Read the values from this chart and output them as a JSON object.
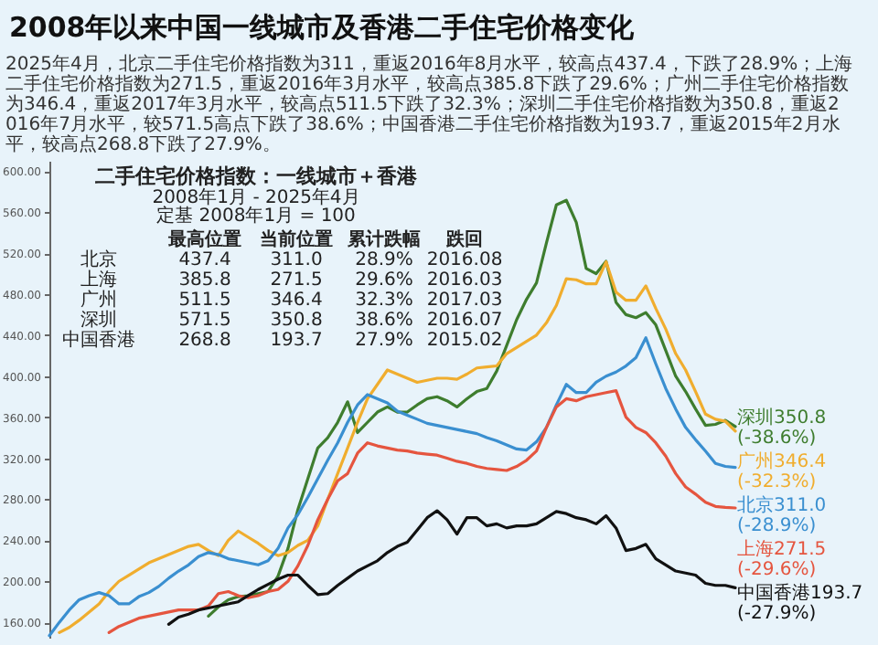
{
  "chart_data": {
    "type": "line",
    "title": "2008年以来中国一线城市及香港二手住宅价格变化",
    "annotations": [
      "2025年4月，北京二手住宅价格指数为311，重返2016年8月水平，较高点437.4，下跌了28.9%；上海二手住宅价格指数为271.5，重返2016年3月水平，较高点385.8下跌了29.6%；广州二手住宅价格指数为346.4，重返2017年3月水平，较高点511.5下跌了32.3%；深圳二手住宅价格指数为350.8，重返2016年7月水平，较571.5高点下跌了38.6%；中国香港二手住宅价格指数为193.7，重返2015年2月水平，较高点268.8下跌了27.9%。",
      "二手住宅价格指数：一线城市＋香港",
      "2008年1月 - 2025年4月",
      "定基 2008年1月 = 100",
      "最高位置 当前位置 累计跌幅 跌回",
      "北京 437.4 311.0 28.9% 2016.08",
      "上海 385.8 271.5 29.6% 2016.03",
      "广州 511.5 346.4 32.3% 2017.03",
      "深圳 571.5 350.8 38.6% 2016.07",
      "中国香港 268.8 193.7 27.9% 2015.02"
    ],
    "categories": [
      null,
      null,
      null,
      null,
      null,
      null,
      null,
      null,
      null,
      null,
      null,
      null,
      null,
      null,
      null,
      null,
      null,
      null,
      null,
      null,
      null,
      null,
      null,
      null,
      null,
      null,
      null,
      null,
      null,
      null,
      null,
      null,
      null,
      null,
      null,
      null,
      null,
      null,
      null,
      null,
      null,
      null,
      null,
      null,
      null,
      null,
      null,
      null,
      null,
      null,
      null,
      null,
      null,
      null,
      null,
      null,
      null,
      null,
      null,
      null,
      null,
      null,
      null,
      null,
      null,
      null,
      null,
      null,
      null,
      null
    ],
    "series": [
      {
        "name": "深圳350.8 (-38.6%)",
        "color": "#3e7d2e",
        "values": [
          null,
          null,
          null,
          null,
          null,
          null,
          null,
          null,
          null,
          null,
          null,
          null,
          null,
          null,
          null,
          null,
          166,
          175,
          182,
          185,
          186,
          188,
          190,
          205,
          232,
          270,
          300,
          330,
          340,
          355,
          375,
          345,
          355,
          365,
          370,
          365,
          365,
          372,
          378,
          380,
          376,
          370,
          378,
          385,
          388,
          405,
          430,
          455,
          475,
          491,
          530,
          567,
          571.5,
          550,
          505,
          500,
          512,
          472,
          460,
          457,
          462,
          450,
          425,
          400,
          385,
          368,
          352,
          353,
          357,
          350.8
        ]
      },
      {
        "name": "广州346.4 (-32.3%)",
        "color": "#f0ad2e",
        "values": [
          null,
          150,
          155,
          162,
          170,
          178,
          190,
          200,
          206,
          212,
          218,
          222,
          226,
          230,
          234,
          236,
          230,
          225,
          240,
          249,
          243,
          237,
          230,
          225,
          228,
          235,
          240,
          254,
          280,
          305,
          330,
          355,
          378,
          392,
          406,
          402,
          398,
          394,
          396,
          398,
          398,
          397,
          402,
          408,
          409,
          410,
          422,
          428,
          434,
          440,
          452,
          469,
          495,
          494,
          490,
          490,
          511.5,
          482,
          474,
          474,
          488,
          466,
          446,
          422,
          406,
          385,
          363,
          358,
          356,
          346.4
        ]
      },
      {
        "name": "北京311.0 (-28.9%)",
        "color": "#3a8fd0",
        "values": [
          147,
          160,
          172,
          182,
          186,
          189,
          186,
          178,
          178,
          185,
          189,
          195,
          203,
          210,
          216,
          224,
          228,
          226,
          222,
          220,
          218,
          216,
          220,
          232,
          252,
          265,
          282,
          300,
          318,
          335,
          355,
          372,
          382,
          378,
          374,
          366,
          362,
          358,
          354,
          352,
          350,
          348,
          346,
          344,
          340,
          337,
          333,
          329,
          328,
          336,
          350,
          372,
          392,
          384,
          384,
          394,
          400,
          404,
          410,
          418,
          437.4,
          412,
          388,
          368,
          350,
          338,
          327,
          315,
          312,
          311
        ]
      },
      {
        "name": "上海271.5 (-29.6%)",
        "color": "#e5553f",
        "values": [
          null,
          null,
          null,
          null,
          null,
          null,
          150,
          156,
          160,
          164,
          166,
          168,
          170,
          172,
          172,
          172,
          176,
          188,
          190,
          186,
          184,
          186,
          190,
          192,
          200,
          215,
          235,
          260,
          280,
          298,
          305,
          325,
          335,
          332,
          330,
          328,
          327,
          325,
          324,
          323,
          320,
          317,
          315,
          312,
          310,
          309,
          308,
          312,
          318,
          327,
          350,
          370,
          378,
          376,
          380,
          382,
          384,
          385.8,
          360,
          350,
          345,
          335,
          322,
          305,
          292,
          285,
          277,
          273,
          272,
          271.5
        ]
      },
      {
        "name": "中国香港193.7 (-27.9%)",
        "color": "#111111",
        "values": [
          null,
          null,
          null,
          null,
          null,
          null,
          null,
          null,
          null,
          null,
          null,
          null,
          158,
          165,
          168,
          172,
          174,
          176,
          178,
          180,
          186,
          192,
          197,
          202,
          206,
          206,
          196,
          187,
          188,
          196,
          203,
          210,
          215,
          220,
          228,
          234,
          238,
          250,
          262,
          268.8,
          260,
          246,
          262,
          262,
          254,
          256,
          252,
          254,
          254,
          256,
          262,
          268,
          266,
          262,
          260,
          256,
          264,
          252,
          230,
          232,
          236,
          222,
          216,
          210,
          208,
          206,
          198,
          196,
          196,
          193.7
        ]
      }
    ],
    "ylim": [
      145,
      610
    ],
    "yticks": [
      {
        "value": 160,
        "label": "160.00"
      },
      {
        "value": 200,
        "label": "200.00"
      },
      {
        "value": 240,
        "label": "240.00"
      },
      {
        "value": 280,
        "label": "280.00"
      },
      {
        "value": 320,
        "label": "320.00"
      },
      {
        "value": 360,
        "label": "360.00"
      },
      {
        "value": 400,
        "label": "400.00"
      },
      {
        "value": 440,
        "label": "440.00"
      },
      {
        "value": 480,
        "label": "480.00"
      },
      {
        "value": 520,
        "label": "520.00"
      },
      {
        "value": 560,
        "label": "560.00"
      },
      {
        "value": 600,
        "label": "600.00"
      }
    ]
  }
}
